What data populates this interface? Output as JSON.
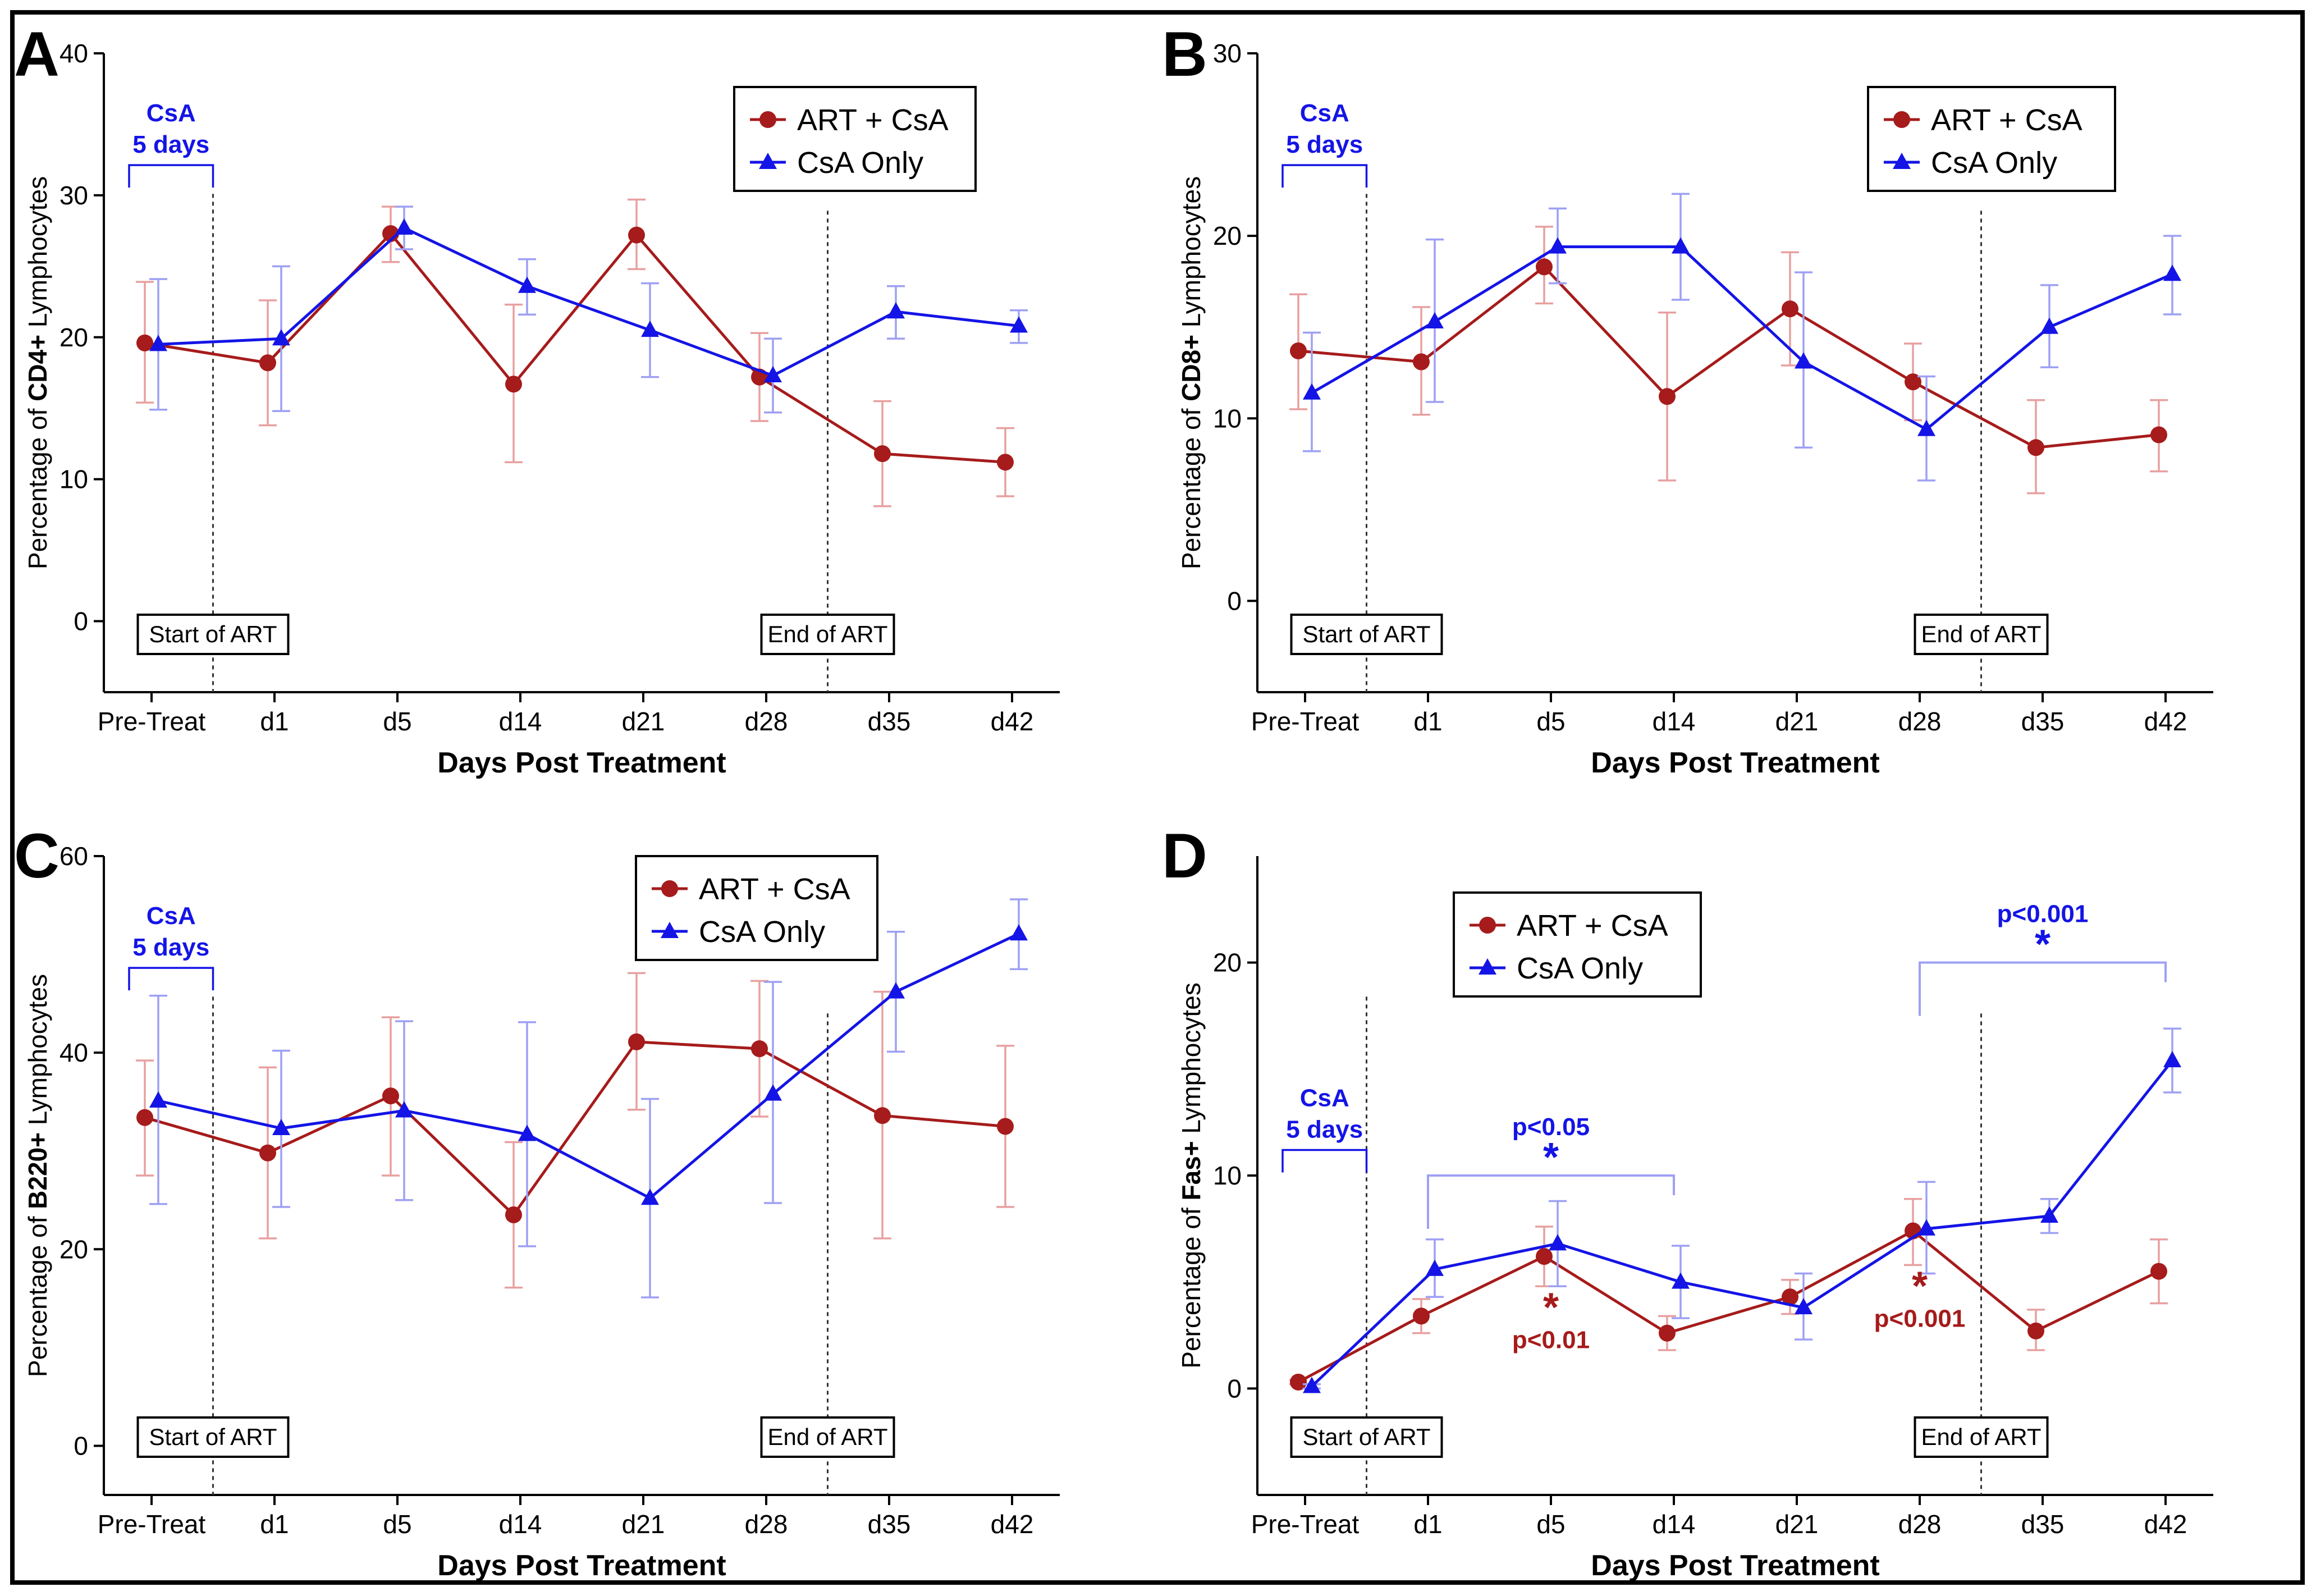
{
  "colors": {
    "art": "#a61b1b",
    "csa": "#1414e6",
    "art_light": "#e8a0a0",
    "csa_light": "#9ea0f4",
    "axis": "#000000"
  },
  "chart_data": [
    {
      "type": "line",
      "panel": "A",
      "marker": "CD4+",
      "ylabel_prefix": "Percentage of ",
      "ylabel_suffix": " Lymphocytes",
      "xlabel": "Days Post Treatment",
      "categories": [
        "Pre-Treat",
        "d1",
        "d5",
        "d14",
        "d21",
        "d28",
        "d35",
        "d42"
      ],
      "ylim": [
        -5,
        40
      ],
      "yticks": [
        0,
        10,
        20,
        30,
        40
      ],
      "series": [
        {
          "name": "ART + CsA",
          "values": [
            19.6,
            18.2,
            27.3,
            16.7,
            27.2,
            17.2,
            11.8,
            11.2
          ],
          "err_low": [
            15.4,
            13.8,
            25.3,
            11.2,
            24.8,
            14.1,
            8.1,
            8.8
          ],
          "err_high": [
            23.9,
            22.6,
            29.2,
            22.3,
            29.7,
            20.3,
            15.5,
            13.6
          ]
        },
        {
          "name": "CsA Only",
          "values": [
            19.5,
            19.9,
            27.7,
            23.6,
            20.5,
            17.3,
            21.8,
            20.8
          ],
          "err_low": [
            14.9,
            14.8,
            26.2,
            21.6,
            17.2,
            14.7,
            19.9,
            19.6
          ],
          "err_high": [
            24.1,
            25.0,
            29.2,
            25.5,
            23.8,
            19.9,
            23.6,
            21.9
          ]
        }
      ],
      "legend": [
        "ART + CsA",
        "CsA Only"
      ],
      "annotations": {
        "csa_line1": "CsA",
        "csa_line2": "5 days",
        "start": "Start of ART",
        "end": "End of ART"
      }
    },
    {
      "type": "line",
      "panel": "B",
      "marker": "CD8+",
      "ylabel_prefix": "Percentage of ",
      "ylabel_suffix": " Lymphocytes",
      "xlabel": "Days Post Treatment",
      "categories": [
        "Pre-Treat",
        "d1",
        "d5",
        "d14",
        "d21",
        "d28",
        "d35",
        "d42"
      ],
      "ylim": [
        -5,
        30
      ],
      "yticks": [
        0,
        10,
        20,
        30
      ],
      "series": [
        {
          "name": "ART + CsA",
          "values": [
            13.7,
            13.1,
            18.3,
            11.2,
            16.0,
            12.0,
            8.4,
            9.1
          ],
          "err_low": [
            10.5,
            10.2,
            16.3,
            6.6,
            12.9,
            9.9,
            5.9,
            7.1
          ],
          "err_high": [
            16.8,
            16.1,
            20.5,
            15.8,
            19.1,
            14.1,
            11.0,
            11.0
          ]
        },
        {
          "name": "CsA Only",
          "values": [
            11.4,
            15.3,
            19.4,
            19.4,
            13.1,
            9.4,
            15.0,
            17.9
          ],
          "err_low": [
            8.2,
            10.9,
            17.4,
            16.5,
            8.4,
            6.6,
            12.8,
            15.7
          ],
          "err_high": [
            14.7,
            19.8,
            21.5,
            22.3,
            18.0,
            12.3,
            17.3,
            20.0
          ]
        }
      ],
      "legend": [
        "ART + CsA",
        "CsA Only"
      ],
      "annotations": {
        "csa_line1": "CsA",
        "csa_line2": "5 days",
        "start": "Start of ART",
        "end": "End of ART"
      }
    },
    {
      "type": "line",
      "panel": "C",
      "marker": "B220+",
      "ylabel_prefix": "Percentage of ",
      "ylabel_suffix": " Lymphocytes",
      "xlabel": "Days Post Treatment",
      "categories": [
        "Pre-Treat",
        "d1",
        "d5",
        "d14",
        "d21",
        "d28",
        "d35",
        "d42"
      ],
      "ylim": [
        -5,
        60
      ],
      "yticks": [
        0,
        20,
        40,
        60
      ],
      "series": [
        {
          "name": "ART + CsA",
          "values": [
            33.4,
            29.8,
            35.6,
            23.5,
            41.1,
            40.4,
            33.6,
            32.5
          ],
          "err_low": [
            27.5,
            21.1,
            27.5,
            16.1,
            34.2,
            33.5,
            21.1,
            24.3
          ],
          "err_high": [
            39.2,
            38.5,
            43.6,
            30.9,
            48.1,
            47.3,
            46.2,
            40.7
          ]
        },
        {
          "name": "CsA Only",
          "values": [
            35.1,
            32.3,
            34.1,
            31.7,
            25.2,
            35.8,
            46.2,
            52.1
          ],
          "err_low": [
            24.6,
            24.3,
            25.0,
            20.3,
            15.1,
            24.7,
            40.1,
            48.5
          ],
          "err_high": [
            45.8,
            40.2,
            43.2,
            43.1,
            35.3,
            47.2,
            52.3,
            55.6
          ]
        }
      ],
      "legend": [
        "ART + CsA",
        "CsA Only"
      ],
      "annotations": {
        "csa_line1": "CsA",
        "csa_line2": "5 days",
        "start": "Start of ART",
        "end": "End of ART"
      }
    },
    {
      "type": "line",
      "panel": "D",
      "marker": "Fas+",
      "ylabel_prefix": "Percentage of ",
      "ylabel_suffix": " Lymphocytes",
      "xlabel": "Days Post Treatment",
      "categories": [
        "Pre-Treat",
        "d1",
        "d5",
        "d14",
        "d21",
        "d28",
        "d35",
        "d42"
      ],
      "ylim": [
        -5,
        25
      ],
      "yticks": [
        0,
        10,
        20
      ],
      "series": [
        {
          "name": "ART + CsA",
          "values": [
            0.3,
            3.4,
            6.2,
            2.6,
            4.3,
            7.4,
            2.7,
            5.5
          ],
          "err_low": [
            0.2,
            2.6,
            4.8,
            1.8,
            3.5,
            5.8,
            1.8,
            4.0
          ],
          "err_high": [
            0.4,
            4.2,
            7.6,
            3.4,
            5.1,
            8.9,
            3.7,
            7.0
          ]
        },
        {
          "name": "CsA Only",
          "values": [
            0.1,
            5.6,
            6.8,
            5.0,
            3.8,
            7.5,
            8.1,
            15.4
          ],
          "err_low": [
            0.0,
            4.3,
            4.8,
            3.3,
            2.3,
            5.4,
            7.3,
            13.9
          ],
          "err_high": [
            0.2,
            7.0,
            8.8,
            6.7,
            5.4,
            9.7,
            8.9,
            16.9
          ]
        }
      ],
      "legend": [
        "ART + CsA",
        "CsA Only"
      ],
      "annotations": {
        "csa_line1": "CsA",
        "csa_line2": "5 days",
        "start": "Start of ART",
        "end": "End of ART"
      },
      "significance": [
        {
          "label": "p<0.05",
          "star": "*",
          "color": "csa",
          "bracket_from": 1,
          "bracket_to": 3,
          "bracket_y": 10.0
        },
        {
          "label": "p<0.001",
          "star": "*",
          "color": "csa",
          "bracket_from": 5,
          "bracket_to": 7,
          "bracket_y": 20.0
        },
        {
          "label": "p<0.01",
          "star": "*",
          "color": "art",
          "at": 2
        },
        {
          "label": "p<0.001",
          "star": "*",
          "color": "art",
          "at": 5
        }
      ]
    }
  ]
}
